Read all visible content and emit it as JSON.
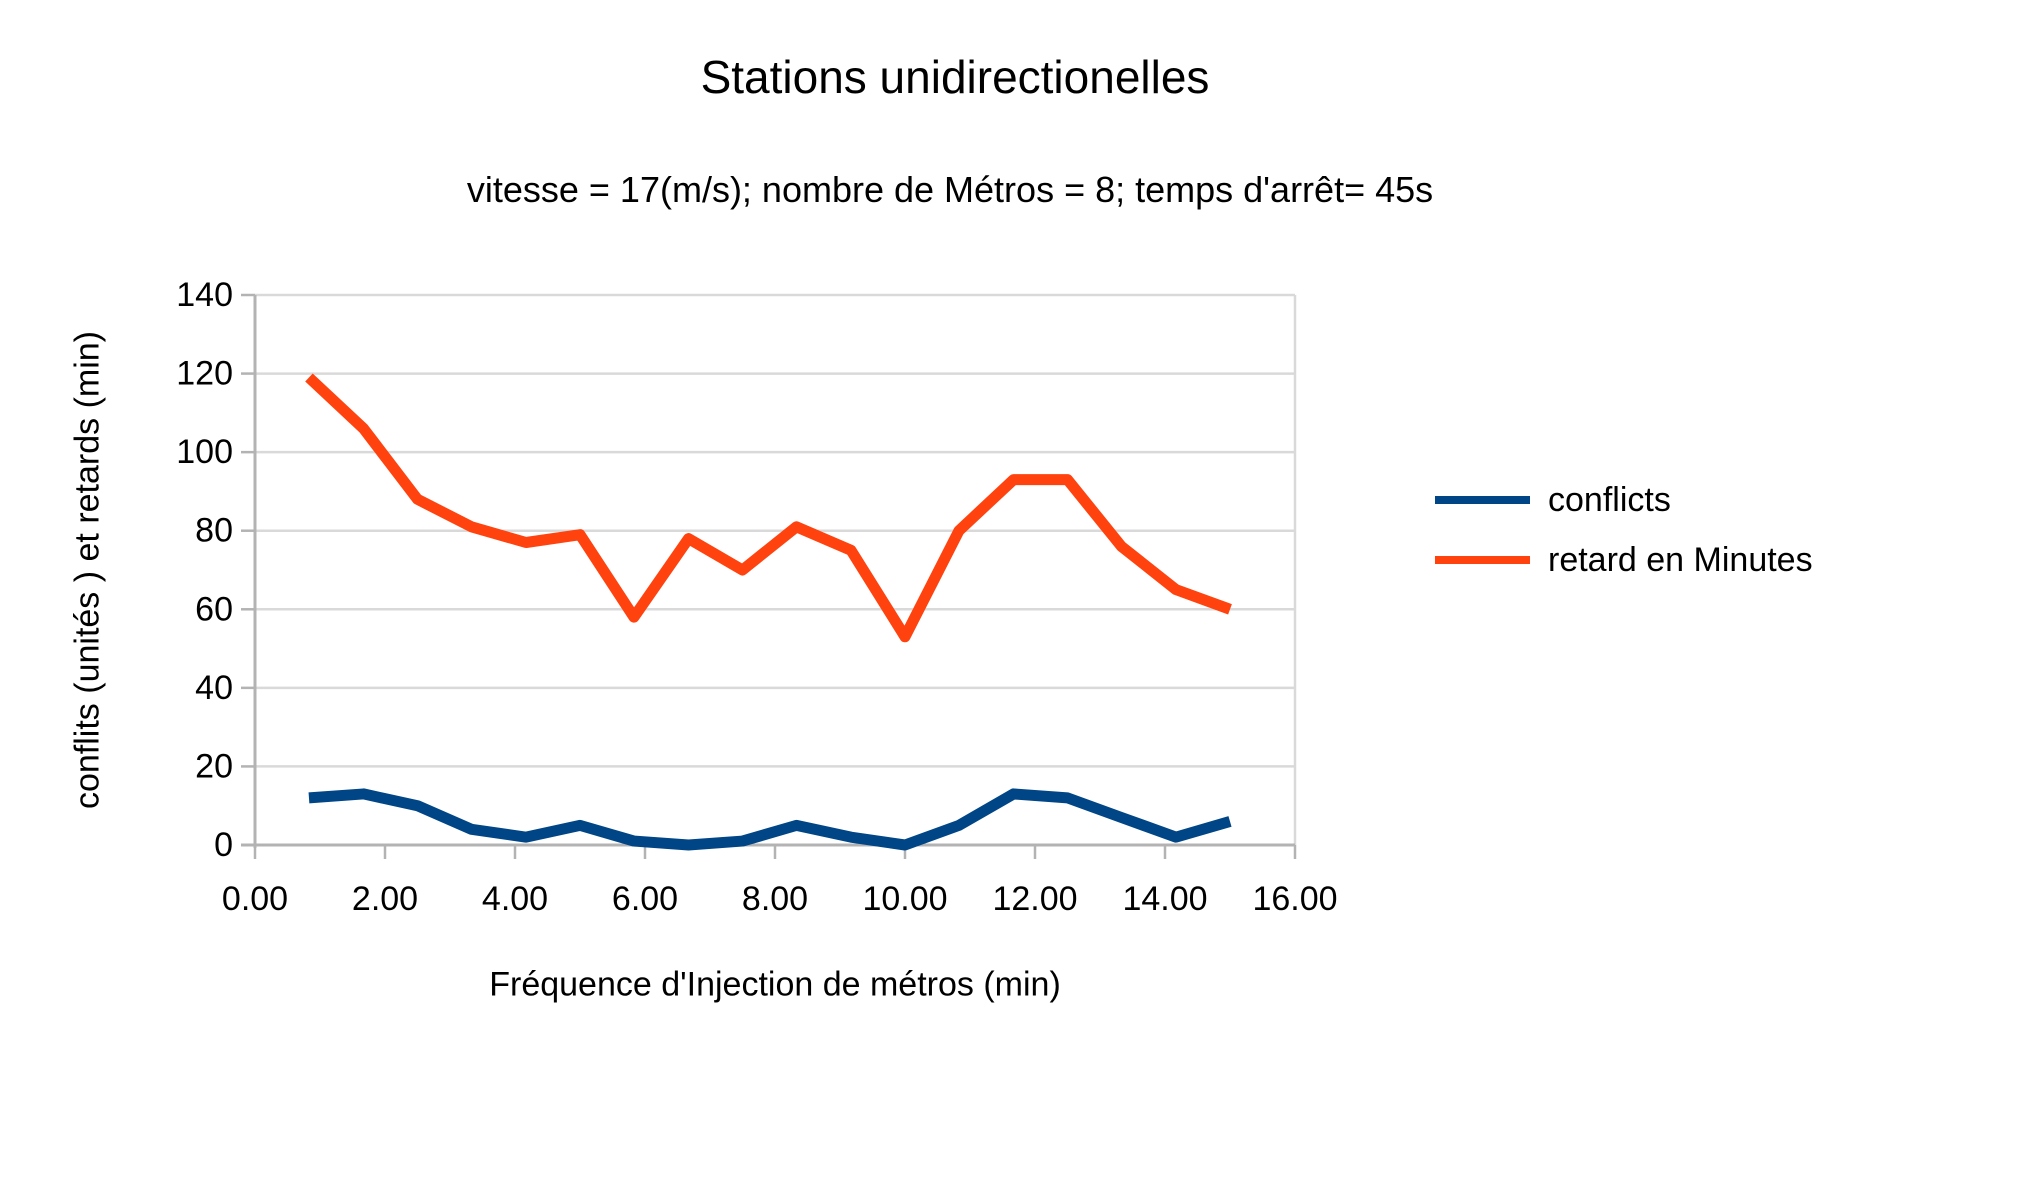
{
  "title": "Stations unidirectionelles",
  "subtitle": "vitesse = 17(m/s); nombre de Métros = 8; temps d'arrêt= 45s",
  "chart_data": {
    "type": "line",
    "x": [
      0.83,
      1.67,
      2.5,
      3.33,
      4.17,
      5.0,
      5.83,
      6.67,
      7.5,
      8.33,
      9.17,
      10.0,
      10.83,
      11.67,
      12.5,
      13.33,
      14.17,
      15.0
    ],
    "series": [
      {
        "name": "conflicts",
        "color": "#004586",
        "values": [
          12,
          13,
          10,
          4,
          2,
          5,
          1,
          0,
          1,
          5,
          2,
          0,
          5,
          13,
          12,
          7,
          2,
          6
        ]
      },
      {
        "name": "retard en Minutes",
        "color": "#FF420E",
        "values": [
          119,
          106,
          88,
          81,
          77,
          79,
          58,
          78,
          70,
          81,
          75,
          53,
          80,
          93,
          93,
          76,
          65,
          60
        ]
      }
    ],
    "xlabel": "Fréquence d'Injection de métros (min)",
    "ylabel": "conflits (unités ) et retards (min)",
    "xlim": [
      0,
      16
    ],
    "ylim": [
      0,
      140
    ],
    "x_tick_values": [
      0,
      2,
      4,
      6,
      8,
      10,
      12,
      14,
      16
    ],
    "x_tick_labels": [
      "0.00",
      "2.00",
      "4.00",
      "6.00",
      "8.00",
      "10.00",
      "12.00",
      "14.00",
      "16.00"
    ],
    "y_tick_values": [
      0,
      20,
      40,
      60,
      80,
      100,
      120,
      140
    ],
    "y_tick_labels": [
      "0",
      "20",
      "40",
      "60",
      "80",
      "100",
      "120",
      "140"
    ],
    "grid": "horizontal",
    "legend_position": "right"
  },
  "colors": {
    "background": "#ffffff",
    "gridline": "#d9d9d9",
    "axis": "#b3b3b3",
    "text": "#000000"
  }
}
